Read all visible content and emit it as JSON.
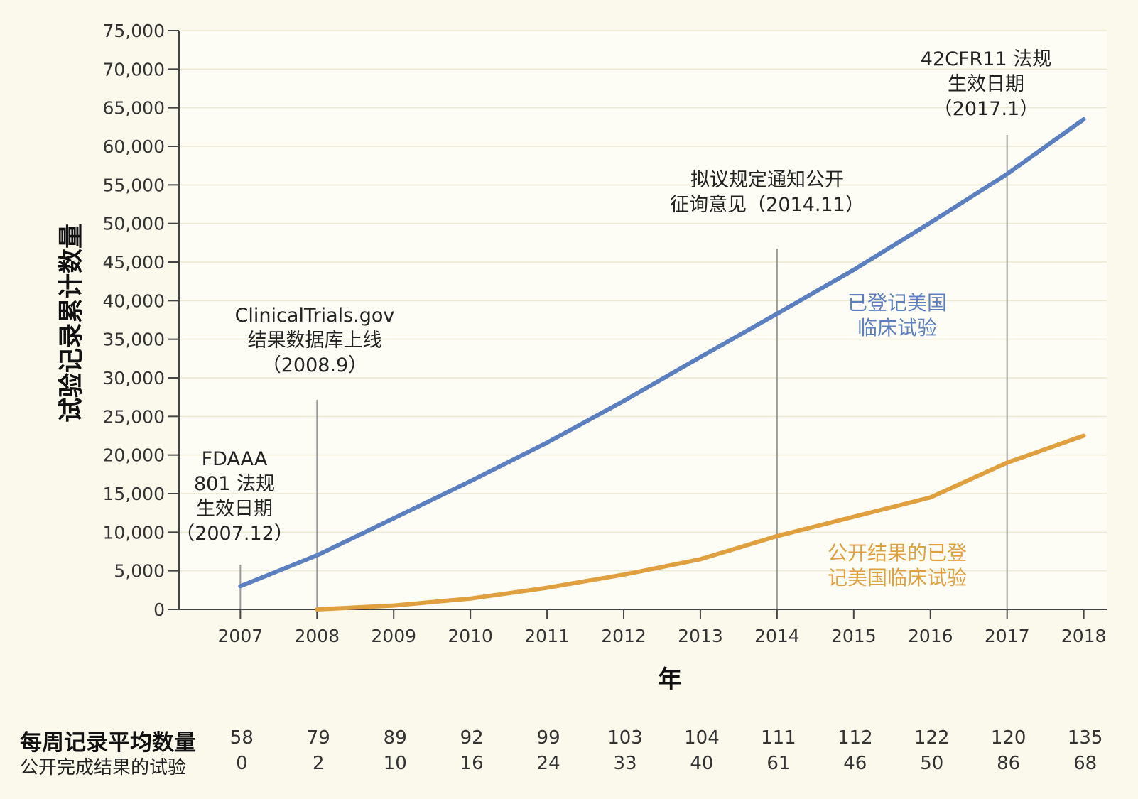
{
  "chart_data": {
    "type": "line",
    "xlabel": "年",
    "ylabel": "试验记录累计数量",
    "x": [
      2007,
      2008,
      2009,
      2010,
      2011,
      2012,
      2013,
      2014,
      2015,
      2016,
      2017,
      2018
    ],
    "xlim": [
      2006.2,
      2018.3
    ],
    "ylim": [
      0,
      75000
    ],
    "yticks": [
      "0",
      "5,000",
      "10,000",
      "15,000",
      "20,000",
      "25,000",
      "30,000",
      "35,000",
      "40,000",
      "45,000",
      "50,000",
      "55,000",
      "60,000",
      "65,000",
      "70,000",
      "75,000"
    ],
    "grid": "horizontal",
    "series": [
      {
        "name": "已登记美国临床试验",
        "name_lines": [
          "已登记美国",
          "临床试验"
        ],
        "color": "#5b7fbf",
        "x": [
          2007,
          2008,
          2009,
          2010,
          2011,
          2012,
          2013,
          2014,
          2015,
          2016,
          2017,
          2018
        ],
        "values": [
          3000,
          7000,
          11800,
          16600,
          21600,
          27000,
          32700,
          38300,
          44000,
          50100,
          56400,
          63500
        ]
      },
      {
        "name": "公开结果的已登记美国临床试验",
        "name_lines": [
          "公开结果的已登",
          "记美国临床试验"
        ],
        "color": "#e0a040",
        "x": [
          2008,
          2009,
          2010,
          2011,
          2012,
          2013,
          2014,
          2015,
          2016,
          2017,
          2018
        ],
        "values": [
          0,
          500,
          1400,
          2800,
          4500,
          6500,
          9500,
          12000,
          14500,
          19000,
          22500
        ]
      }
    ],
    "annotations": [
      {
        "x": 2007,
        "label_lines": [
          "FDAAA",
          "801 法规",
          "生效日期",
          "（2007.12）"
        ]
      },
      {
        "x": 2008,
        "label_lines": [
          "ClinicalTrials.gov",
          "结果数据库上线",
          "（2008.9）"
        ]
      },
      {
        "x": 2014,
        "label_lines": [
          "拟议规定通知公开",
          "征询意见（2014.11）"
        ]
      },
      {
        "x": 2017,
        "label_lines": [
          "42CFR11 法规",
          "生效日期",
          "（2017.1）"
        ]
      }
    ]
  },
  "table": {
    "row1_label": "每周记录平均数量",
    "row2_label": "公开完成结果的试验",
    "row1_values": [
      "58",
      "79",
      "89",
      "92",
      "99",
      "103",
      "104",
      "111",
      "112",
      "122",
      "120",
      "135"
    ],
    "row2_values": [
      "0",
      "2",
      "10",
      "16",
      "24",
      "33",
      "40",
      "61",
      "46",
      "50",
      "86",
      "68"
    ]
  }
}
